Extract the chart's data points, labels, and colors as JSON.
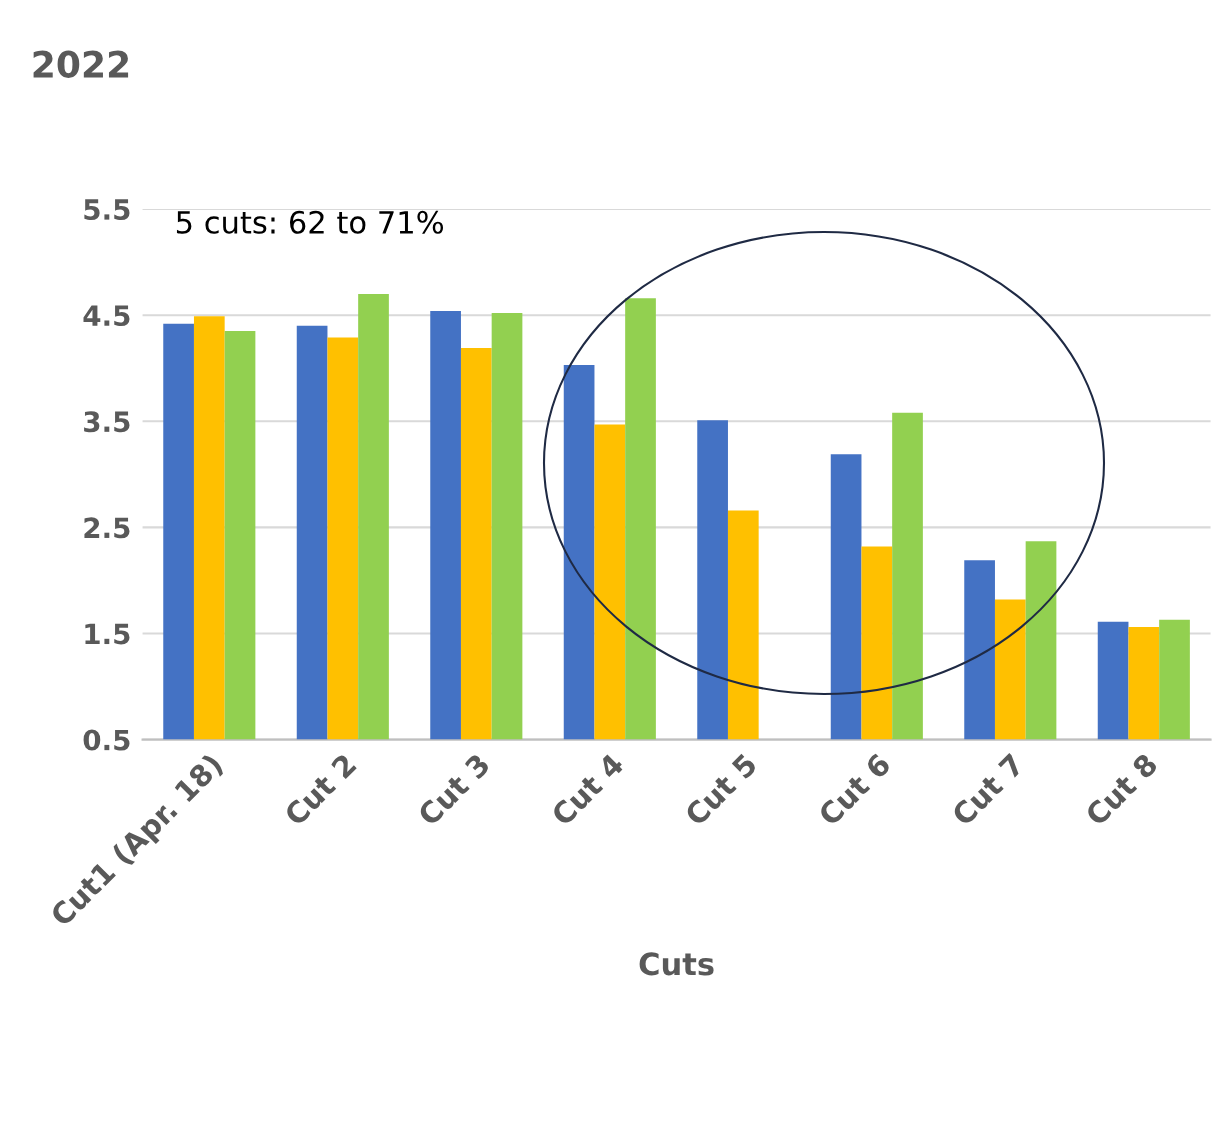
{
  "chart_data": {
    "type": "bar",
    "title": "2022",
    "xlabel": "Cuts",
    "categories": [
      "Cut1 (Apr. 18)",
      "Cut 2",
      "Cut 3",
      "Cut 4",
      "Cut 5",
      "Cut 6",
      "Cut 7",
      "Cut 8"
    ],
    "series": [
      {
        "color": "#4472c4",
        "values": [
          4.42,
          4.4,
          4.54,
          4.03,
          3.51,
          3.19,
          2.19,
          1.61
        ]
      },
      {
        "color": "#ffc000",
        "values": [
          4.49,
          4.29,
          4.19,
          3.47,
          2.66,
          2.32,
          1.82,
          1.56
        ]
      },
      {
        "color": "#92d050",
        "values": [
          4.35,
          4.7,
          4.52,
          4.66,
          null,
          3.58,
          2.37,
          1.63
        ]
      }
    ],
    "ylim": [
      0.5,
      5.5
    ],
    "yticks": [
      {
        "value": 0.5,
        "label": "0.5"
      },
      {
        "value": 1.5,
        "label": "1.5"
      },
      {
        "value": 2.5,
        "label": "2.5"
      },
      {
        "value": 3.5,
        "label": "3.5"
      },
      {
        "value": 4.5,
        "label": "4.5"
      },
      {
        "value": 5.5,
        "label": "5.5"
      }
    ],
    "grid": "y",
    "annotations": [
      "5 cuts: 62 to 71%"
    ]
  }
}
